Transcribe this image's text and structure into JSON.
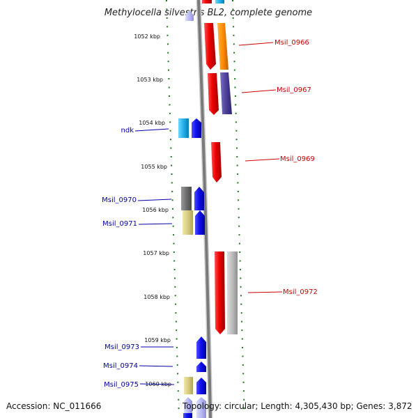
{
  "title": "Methylocella silvestris BL2, complete genome",
  "kbp_labels": [
    "1052 kbp",
    "1053 kbp",
    "1054 kbp",
    "1055 kbp",
    "1056 kbp",
    "1057 kbp",
    "1058 kbp",
    "1059 kbp",
    "1060 kbp"
  ],
  "right_labels": [
    "Msil_0966",
    "Msil_0967",
    "Msil_0969",
    "Msil_0972"
  ],
  "left_labels": [
    "ndk",
    "Msil_0970",
    "Msil_0971",
    "Msil_0973",
    "Msil_0974",
    "Msil_0975"
  ],
  "footer": {
    "accession": "Accession: NC_011666",
    "stats": "Topology: circular; Length: 4,305,430 bp; Genes: 3,872"
  },
  "colors": {
    "forward_label": "#cc0000",
    "reverse_label": "#0000aa",
    "tick": "#1a7a1a",
    "backbone": "#808080"
  }
}
